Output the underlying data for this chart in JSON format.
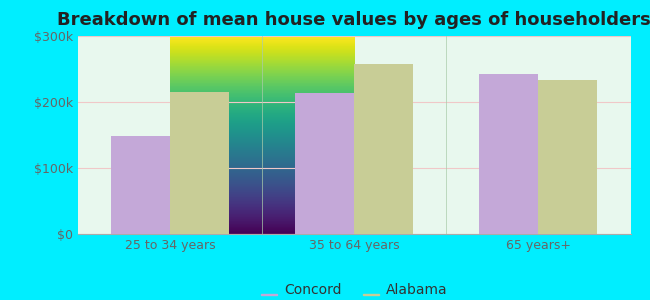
{
  "title": "Breakdown of mean house values by ages of householders",
  "categories": [
    "25 to 34 years",
    "35 to 64 years",
    "65 years+"
  ],
  "concord_values": [
    148000,
    213000,
    242000
  ],
  "alabama_values": [
    215000,
    257000,
    234000
  ],
  "concord_color": "#c4a8d8",
  "alabama_color": "#c8cd96",
  "ylim": [
    0,
    300000
  ],
  "yticks": [
    0,
    100000,
    200000,
    300000
  ],
  "ytick_labels": [
    "$0",
    "$100k",
    "$200k",
    "$300k"
  ],
  "legend_labels": [
    "Concord",
    "Alabama"
  ],
  "background_color": "#00eeff",
  "plot_bg_top": "#ffffff",
  "plot_bg_bottom": "#d8f5e0",
  "bar_width": 0.32,
  "title_fontsize": 13,
  "tick_fontsize": 9,
  "legend_fontsize": 10
}
